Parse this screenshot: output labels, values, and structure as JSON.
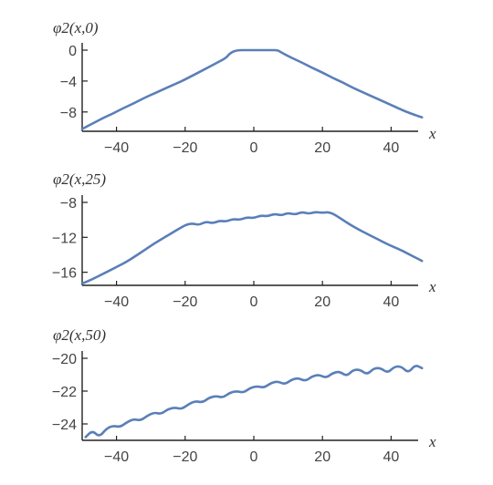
{
  "colors": {
    "series": "#5a7fb8",
    "axis": "#222222",
    "text": "#444444"
  },
  "chart_data": [
    {
      "type": "line",
      "ylabel": "φ2(x,0)",
      "xlabel": "x",
      "xlim": [
        -50,
        50
      ],
      "ylim": [
        -10.5,
        0
      ],
      "xticks": [
        -40,
        -20,
        0,
        20,
        40
      ],
      "yticks": [
        0,
        -4,
        -8
      ],
      "ytick_labels": [
        "0",
        "−4",
        "−8"
      ],
      "xtick_labels": [
        "−40",
        "−20",
        "0",
        "20",
        "40"
      ],
      "x": [
        -50,
        -47,
        -44,
        -41,
        -38,
        -35,
        -32,
        -29,
        -26,
        -23,
        -20,
        -17,
        -14,
        -11,
        -8,
        -7,
        -5,
        -2,
        0,
        2,
        5,
        7,
        8,
        11,
        14,
        17,
        20,
        23,
        26,
        29,
        32,
        35,
        38,
        41,
        44,
        47,
        49
      ],
      "y": [
        -10.2,
        -9.5,
        -8.8,
        -8.2,
        -7.5,
        -6.9,
        -6.2,
        -5.6,
        -5.0,
        -4.4,
        -3.8,
        -3.1,
        -2.4,
        -1.7,
        -1.0,
        -0.4,
        0,
        0,
        0,
        0,
        0,
        0,
        -0.3,
        -1.0,
        -1.6,
        -2.3,
        -2.9,
        -3.6,
        -4.2,
        -4.9,
        -5.5,
        -6.1,
        -6.7,
        -7.3,
        -7.9,
        -8.4,
        -8.7
      ]
    },
    {
      "type": "line",
      "ylabel": "φ2(x,25)",
      "xlabel": "x",
      "xlim": [
        -50,
        50
      ],
      "ylim": [
        -17.5,
        -8
      ],
      "xticks": [
        -40,
        -20,
        0,
        20,
        40
      ],
      "yticks": [
        -8,
        -12,
        -16
      ],
      "ytick_labels": [
        "−8",
        "−12",
        "−16"
      ],
      "xtick_labels": [
        "−40",
        "−20",
        "0",
        "20",
        "40"
      ],
      "x": [
        -50,
        -47,
        -44,
        -41,
        -38,
        -35,
        -32,
        -29,
        -26,
        -23,
        -20,
        -18,
        -16,
        -14,
        -12,
        -10,
        -8,
        -6,
        -4,
        -2,
        0,
        2,
        4,
        6,
        8,
        10,
        12,
        14,
        16,
        18,
        20,
        22,
        24,
        27,
        30,
        33,
        36,
        39,
        42,
        45,
        48,
        49
      ],
      "y": [
        -17.3,
        -16.8,
        -16.2,
        -15.6,
        -15.0,
        -14.3,
        -13.5,
        -12.7,
        -12.0,
        -11.3,
        -10.6,
        -10.4,
        -10.6,
        -10.2,
        -10.4,
        -10.1,
        -10.2,
        -9.9,
        -10.0,
        -9.7,
        -9.8,
        -9.5,
        -9.6,
        -9.3,
        -9.5,
        -9.2,
        -9.4,
        -9.1,
        -9.3,
        -9.1,
        -9.2,
        -9.1,
        -9.5,
        -10.3,
        -11.0,
        -11.6,
        -12.2,
        -12.8,
        -13.3,
        -13.9,
        -14.5,
        -14.7
      ]
    },
    {
      "type": "line",
      "ylabel": "φ2(x,50)",
      "xlabel": "x",
      "xlim": [
        -50,
        50
      ],
      "ylim": [
        -25,
        -20
      ],
      "xticks": [
        -40,
        -20,
        0,
        20,
        40
      ],
      "yticks": [
        -20,
        -22,
        -24
      ],
      "ytick_labels": [
        "−20",
        "−22",
        "−24"
      ],
      "xtick_labels": [
        "−40",
        "−20",
        "0",
        "20",
        "40"
      ],
      "x": [
        -49,
        -47,
        -45,
        -43,
        -41,
        -39,
        -37,
        -35,
        -33,
        -31,
        -29,
        -27,
        -25,
        -23,
        -21,
        -19,
        -17,
        -15,
        -13,
        -11,
        -9,
        -7,
        -5,
        -3,
        -1,
        1,
        3,
        5,
        7,
        9,
        11,
        13,
        15,
        17,
        19,
        21,
        23,
        25,
        27,
        29,
        31,
        33,
        35,
        37,
        39,
        41,
        43,
        45,
        47,
        49
      ],
      "y": [
        -24.8,
        -24.4,
        -24.8,
        -24.3,
        -24.1,
        -24.2,
        -23.9,
        -23.7,
        -23.8,
        -23.5,
        -23.3,
        -23.4,
        -23.1,
        -23.0,
        -23.1,
        -22.8,
        -22.6,
        -22.7,
        -22.4,
        -22.3,
        -22.4,
        -22.1,
        -22.0,
        -22.1,
        -21.8,
        -21.7,
        -21.8,
        -21.5,
        -21.4,
        -21.6,
        -21.3,
        -21.2,
        -21.4,
        -21.1,
        -21.0,
        -21.2,
        -20.9,
        -20.8,
        -21.1,
        -20.7,
        -20.7,
        -21.0,
        -20.6,
        -20.6,
        -20.9,
        -20.5,
        -20.5,
        -20.9,
        -20.4,
        -20.6
      ]
    }
  ]
}
